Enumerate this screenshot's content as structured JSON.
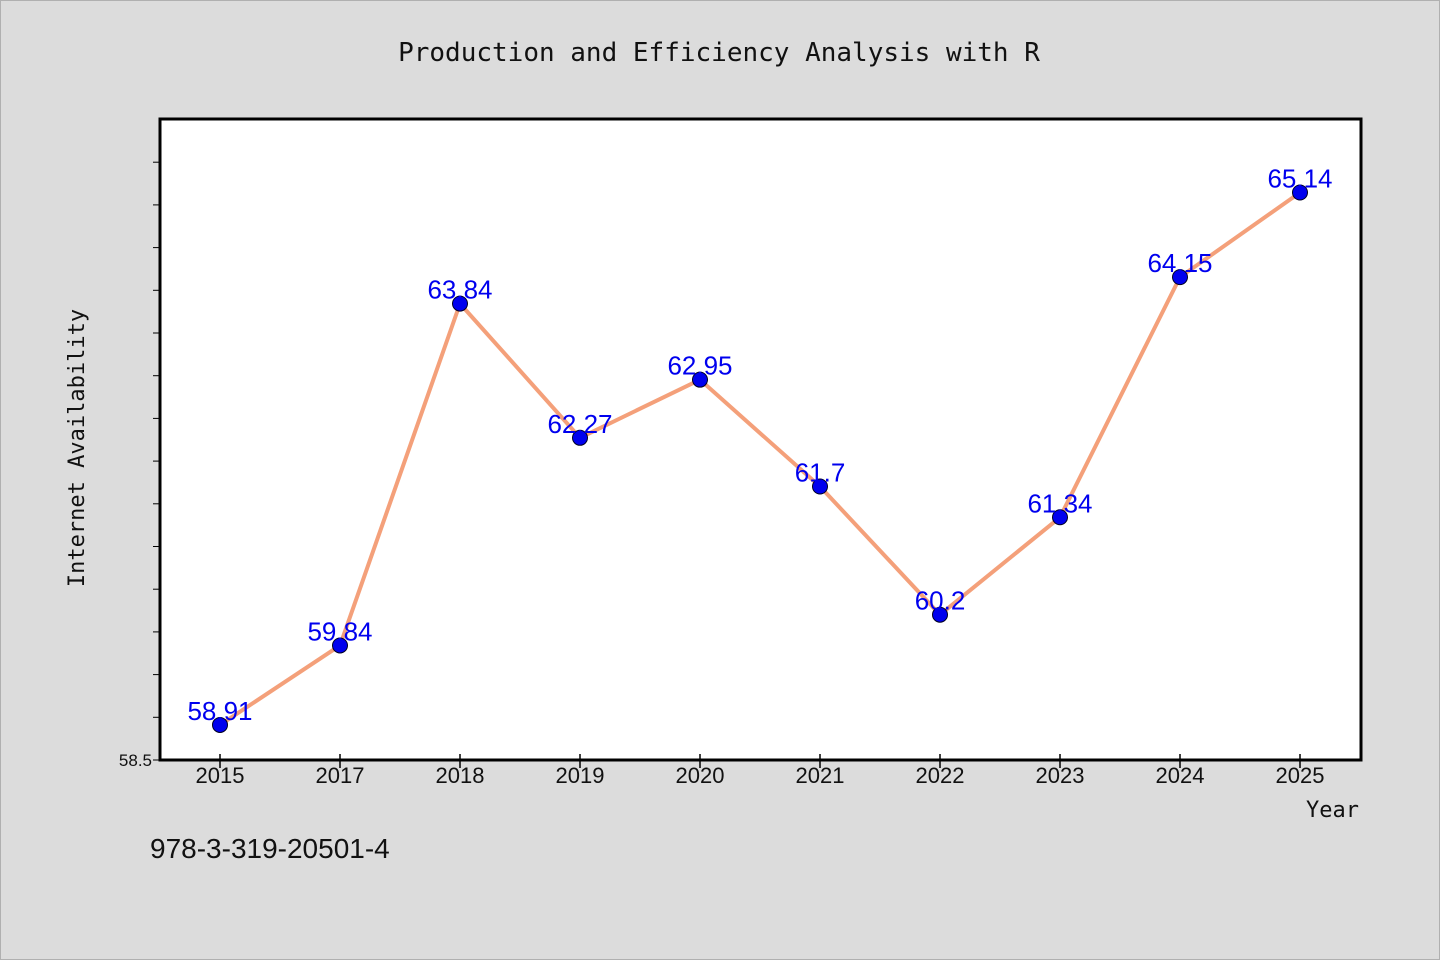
{
  "chart_data": {
    "type": "line",
    "title": "Production and Efficiency Analysis with R",
    "xlabel": "Year",
    "ylabel": "Internet Availability",
    "categories": [
      "2015",
      "2017",
      "2018",
      "2019",
      "2020",
      "2021",
      "2022",
      "2023",
      "2024",
      "2025"
    ],
    "series": [
      {
        "values": [
          58.91,
          59.84,
          63.84,
          62.27,
          62.95,
          61.7,
          60.2,
          61.34,
          64.15,
          65.14
        ],
        "data_labels": [
          "58.91",
          "59.84",
          "63.84",
          "62.27",
          "62.95",
          "61.7",
          "60.2",
          "61.34",
          "64.15",
          "65.14"
        ]
      }
    ],
    "y_tick_labels": [
      "58.5"
    ],
    "ylim": [
      58.5,
      66.0
    ],
    "grid": false,
    "legend": "none",
    "colors": {
      "line": "#f4a07a",
      "marker": "#0000ee",
      "data_label": "#0000ee",
      "plot_background": "#ffffff",
      "page_background": "#dcdcdc"
    }
  },
  "footer": {
    "code": "978-3-319-20501-4"
  }
}
